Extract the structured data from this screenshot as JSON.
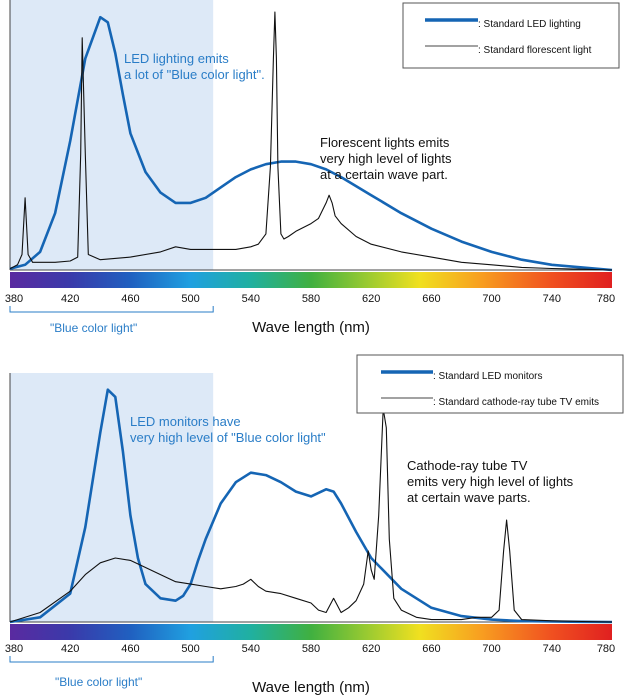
{
  "colors": {
    "led": "#1565b4",
    "fluor": "#111111",
    "blue_text": "#2a7dc7",
    "blue_region": "#dde9f7"
  },
  "x_axis_label": "Wave length (nm)",
  "blue_region_label": "\"Blue color light\"",
  "chart_data": [
    {
      "type": "line",
      "xlabel": "Wave length (nm)",
      "xlim": [
        380,
        780
      ],
      "ylim": [
        0,
        1
      ],
      "x_ticks": [
        380,
        420,
        460,
        500,
        540,
        580,
        620,
        660,
        700,
        740,
        780
      ],
      "highlight_region": [
        380,
        515
      ],
      "legend_placement": "top-right",
      "annotations": [
        {
          "id": "led",
          "lines": [
            "LED lighting emits",
            "a lot of \"Blue color light\"."
          ]
        },
        {
          "id": "fluor",
          "lines": [
            "Florescent lights emits",
            "very high level of lights",
            "at a certain wave part."
          ]
        }
      ],
      "series": [
        {
          "name": "Standard LED lighting",
          "style": "thick-blue",
          "x": [
            380,
            390,
            400,
            410,
            420,
            430,
            440,
            445,
            450,
            455,
            460,
            470,
            480,
            490,
            500,
            510,
            520,
            530,
            540,
            550,
            560,
            570,
            580,
            590,
            600,
            620,
            640,
            660,
            680,
            700,
            720,
            740,
            760,
            780
          ],
          "y": [
            0.005,
            0.02,
            0.07,
            0.22,
            0.5,
            0.82,
            0.98,
            0.96,
            0.84,
            0.68,
            0.53,
            0.38,
            0.3,
            0.26,
            0.26,
            0.28,
            0.32,
            0.36,
            0.39,
            0.41,
            0.42,
            0.42,
            0.41,
            0.39,
            0.36,
            0.29,
            0.22,
            0.16,
            0.11,
            0.07,
            0.04,
            0.02,
            0.01,
            0.0
          ]
        },
        {
          "name": "Standard florescent light",
          "style": "thin-black",
          "x": [
            380,
            385,
            388,
            390,
            392,
            395,
            400,
            410,
            420,
            425,
            427,
            428,
            430,
            432,
            440,
            460,
            480,
            490,
            500,
            510,
            520,
            530,
            540,
            545,
            550,
            553,
            555,
            556,
            557,
            558,
            560,
            562,
            565,
            570,
            580,
            585,
            590,
            592,
            594,
            596,
            600,
            610,
            620,
            640,
            660,
            680,
            700,
            720,
            740,
            760,
            780
          ],
          "y": [
            0.005,
            0.02,
            0.06,
            0.28,
            0.06,
            0.03,
            0.03,
            0.03,
            0.035,
            0.05,
            0.45,
            0.9,
            0.45,
            0.06,
            0.04,
            0.05,
            0.07,
            0.09,
            0.08,
            0.08,
            0.08,
            0.08,
            0.09,
            0.1,
            0.14,
            0.4,
            0.82,
            1.0,
            0.82,
            0.4,
            0.14,
            0.12,
            0.13,
            0.15,
            0.18,
            0.2,
            0.26,
            0.29,
            0.26,
            0.21,
            0.18,
            0.13,
            0.1,
            0.07,
            0.05,
            0.03,
            0.02,
            0.01,
            0.006,
            0.003,
            0.0
          ]
        }
      ]
    },
    {
      "type": "line",
      "xlabel": "Wave length (nm)",
      "xlim": [
        380,
        780
      ],
      "ylim": [
        0,
        1
      ],
      "x_ticks": [
        380,
        420,
        460,
        500,
        540,
        580,
        620,
        660,
        700,
        740,
        780
      ],
      "highlight_region": [
        380,
        515
      ],
      "legend_placement": "top-right",
      "annotations": [
        {
          "id": "led",
          "lines": [
            "LED monitors have",
            "very high level of \"Blue color light\""
          ]
        },
        {
          "id": "crt",
          "lines": [
            "Cathode-ray tube TV",
            "emits very high level of lights",
            "at certain wave parts."
          ]
        }
      ],
      "series": [
        {
          "name": "Standard LED monitors",
          "style": "thick-blue",
          "x": [
            380,
            400,
            420,
            430,
            440,
            445,
            450,
            455,
            460,
            465,
            470,
            480,
            490,
            495,
            500,
            505,
            510,
            520,
            530,
            540,
            550,
            560,
            570,
            580,
            590,
            595,
            600,
            610,
            620,
            640,
            660,
            680,
            700,
            720,
            740,
            760,
            780
          ],
          "y": [
            0.0,
            0.02,
            0.12,
            0.4,
            0.8,
            0.98,
            0.95,
            0.72,
            0.45,
            0.27,
            0.16,
            0.1,
            0.09,
            0.11,
            0.16,
            0.26,
            0.35,
            0.5,
            0.59,
            0.63,
            0.62,
            0.59,
            0.55,
            0.53,
            0.56,
            0.55,
            0.5,
            0.38,
            0.27,
            0.14,
            0.06,
            0.025,
            0.01,
            0.004,
            0.002,
            0.001,
            0.0
          ]
        },
        {
          "name": "Standard cathode-ray tube TV emits",
          "style": "thin-black",
          "x": [
            380,
            400,
            420,
            430,
            440,
            450,
            460,
            470,
            480,
            490,
            500,
            510,
            520,
            530,
            535,
            540,
            545,
            550,
            560,
            570,
            580,
            585,
            590,
            595,
            600,
            605,
            610,
            615,
            618,
            620,
            622,
            625,
            628,
            630,
            632,
            635,
            640,
            650,
            660,
            670,
            680,
            690,
            700,
            705,
            708,
            710,
            712,
            715,
            720,
            740,
            760,
            780
          ],
          "y": [
            0.0,
            0.04,
            0.13,
            0.2,
            0.25,
            0.27,
            0.26,
            0.23,
            0.2,
            0.17,
            0.16,
            0.15,
            0.14,
            0.15,
            0.16,
            0.18,
            0.15,
            0.13,
            0.12,
            0.1,
            0.08,
            0.05,
            0.04,
            0.1,
            0.04,
            0.06,
            0.09,
            0.16,
            0.3,
            0.22,
            0.18,
            0.45,
            0.9,
            0.82,
            0.35,
            0.1,
            0.05,
            0.02,
            0.01,
            0.01,
            0.01,
            0.02,
            0.02,
            0.05,
            0.3,
            0.43,
            0.3,
            0.05,
            0.01,
            0.005,
            0.002,
            0.0
          ]
        }
      ]
    }
  ]
}
